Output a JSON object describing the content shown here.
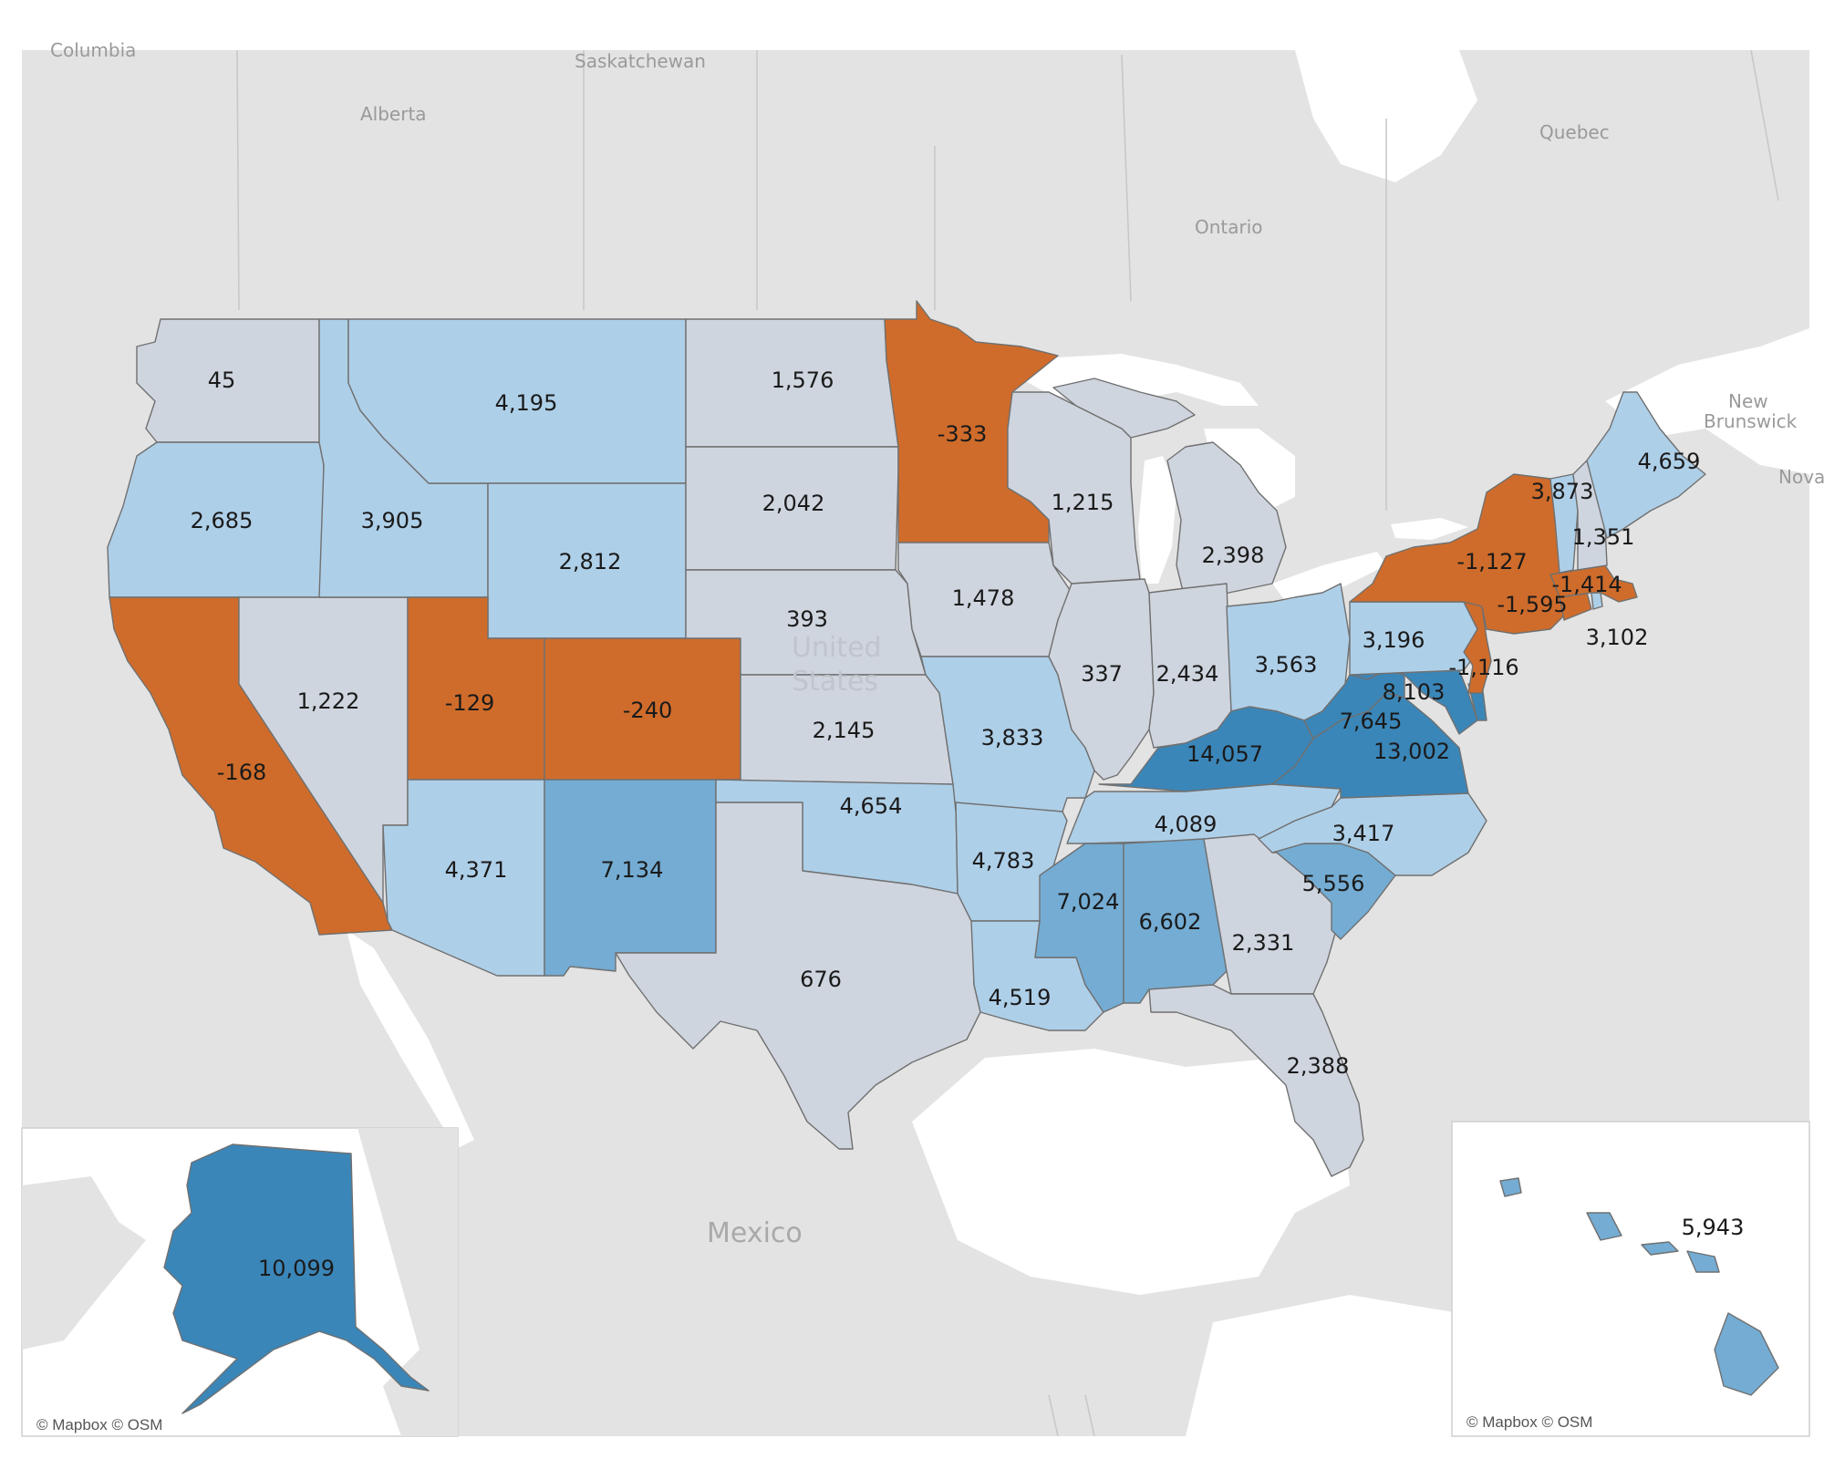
{
  "colors": {
    "negative": "#cf6c2b",
    "neutral": "#cfd5df",
    "light_blue": "#aecfe8",
    "mid_blue": "#74acd3",
    "dark_blue": "#3b86b8",
    "land": "#e3e3e3",
    "water": "#ffffff"
  },
  "basemap_labels": {
    "columbia": "Columbia",
    "saskatchewan": "Saskatchewan",
    "alberta": "Alberta",
    "ontario": "Ontario",
    "quebec": "Quebec",
    "new_brunswick": "New Brunswick",
    "nova": "Nova",
    "mexico": "Mexico",
    "united_states_1": "United",
    "united_states_2": "States"
  },
  "credits": {
    "alaska_inset": "© Mapbox © OSM",
    "hawaii_inset": "© Mapbox © OSM"
  },
  "states": [
    {
      "id": "WA",
      "value": "45",
      "color": "neutral"
    },
    {
      "id": "OR",
      "value": "2,685",
      "color": "light_blue"
    },
    {
      "id": "CA",
      "value": "-168",
      "color": "negative"
    },
    {
      "id": "NV",
      "value": "1,222",
      "color": "neutral"
    },
    {
      "id": "ID",
      "value": "3,905",
      "color": "light_blue"
    },
    {
      "id": "MT",
      "value": "4,195",
      "color": "light_blue"
    },
    {
      "id": "WY",
      "value": "2,812",
      "color": "light_blue"
    },
    {
      "id": "UT",
      "value": "-129",
      "color": "negative"
    },
    {
      "id": "CO",
      "value": "-240",
      "color": "negative"
    },
    {
      "id": "AZ",
      "value": "4,371",
      "color": "light_blue"
    },
    {
      "id": "NM",
      "value": "7,134",
      "color": "mid_blue"
    },
    {
      "id": "ND",
      "value": "1,576",
      "color": "neutral"
    },
    {
      "id": "SD",
      "value": "2,042",
      "color": "neutral"
    },
    {
      "id": "NE",
      "value": "393",
      "color": "neutral"
    },
    {
      "id": "KS",
      "value": "2,145",
      "color": "neutral"
    },
    {
      "id": "OK",
      "value": "4,654",
      "color": "light_blue"
    },
    {
      "id": "TX",
      "value": "676",
      "color": "neutral"
    },
    {
      "id": "MN",
      "value": "-333",
      "color": "negative"
    },
    {
      "id": "IA",
      "value": "1,478",
      "color": "neutral"
    },
    {
      "id": "MO",
      "value": "3,833",
      "color": "light_blue"
    },
    {
      "id": "AR",
      "value": "4,783",
      "color": "light_blue"
    },
    {
      "id": "LA",
      "value": "4,519",
      "color": "light_blue"
    },
    {
      "id": "WI",
      "value": "1,215",
      "color": "neutral"
    },
    {
      "id": "IL",
      "value": "337",
      "color": "neutral"
    },
    {
      "id": "MI",
      "value": "2,398",
      "color": "neutral"
    },
    {
      "id": "IN",
      "value": "2,434",
      "color": "neutral"
    },
    {
      "id": "OH",
      "value": "3,563",
      "color": "light_blue"
    },
    {
      "id": "KY",
      "value": "14,057",
      "color": "dark_blue"
    },
    {
      "id": "TN",
      "value": "4,089",
      "color": "light_blue"
    },
    {
      "id": "MS",
      "value": "7,024",
      "color": "mid_blue"
    },
    {
      "id": "AL",
      "value": "6,602",
      "color": "mid_blue"
    },
    {
      "id": "GA",
      "value": "2,331",
      "color": "neutral"
    },
    {
      "id": "FL",
      "value": "2,388",
      "color": "neutral"
    },
    {
      "id": "SC",
      "value": "5,556",
      "color": "mid_blue"
    },
    {
      "id": "NC",
      "value": "3,417",
      "color": "light_blue"
    },
    {
      "id": "VA",
      "value": "13,002",
      "color": "dark_blue"
    },
    {
      "id": "WV",
      "value": "7,645",
      "color": "dark_blue"
    },
    {
      "id": "MD",
      "value": "8,103",
      "color": "dark_blue"
    },
    {
      "id": "DE",
      "value": "",
      "color": "dark_blue"
    },
    {
      "id": "PA",
      "value": "3,196",
      "color": "light_blue"
    },
    {
      "id": "NJ",
      "value": "-1,116",
      "color": "negative"
    },
    {
      "id": "NY",
      "value": "-1,127",
      "color": "negative"
    },
    {
      "id": "CT",
      "value": "-1,595",
      "color": "negative"
    },
    {
      "id": "RI",
      "value": "3,102",
      "color": "light_blue"
    },
    {
      "id": "MA",
      "value": "-1,414",
      "color": "negative"
    },
    {
      "id": "VT",
      "value": "3,873",
      "color": "light_blue"
    },
    {
      "id": "NH",
      "value": "1,351",
      "color": "neutral"
    },
    {
      "id": "ME",
      "value": "4,659",
      "color": "light_blue"
    },
    {
      "id": "AK",
      "value": "10,099",
      "color": "dark_blue"
    },
    {
      "id": "HI",
      "value": "5,943",
      "color": "mid_blue"
    }
  ]
}
